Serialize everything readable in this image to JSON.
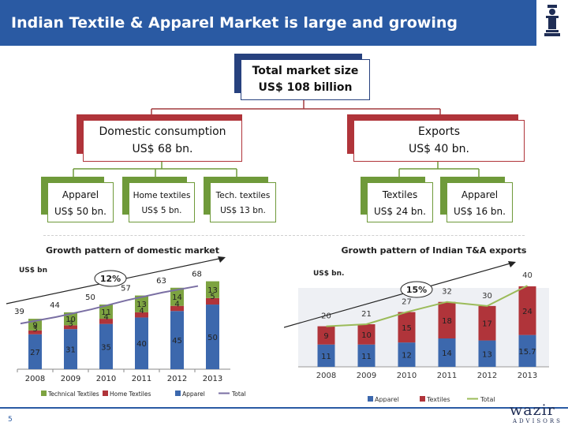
{
  "header": {
    "title": "Indian Textile & Apparel Market is large and growing"
  },
  "logo": {
    "icon": "chess-piece-icon"
  },
  "tree": {
    "root": {
      "line1": "Total market size",
      "line2": "US$ 108 billion"
    },
    "domestic": {
      "line1": "Domestic consumption",
      "line2": "US$ 68 bn."
    },
    "exports": {
      "line1": "Exports",
      "line2": "US$ 40 bn."
    },
    "dom_children": [
      {
        "line1": "Apparel",
        "line2": "US$ 50 bn."
      },
      {
        "line1": "Home textiles",
        "line2": "US$ 5 bn."
      },
      {
        "line1": "Tech. textiles",
        "line2": "US$ 13 bn."
      }
    ],
    "exp_children": [
      {
        "line1": "Textiles",
        "line2": "US$ 24 bn."
      },
      {
        "line1": "Apparel",
        "line2": "US$ 16 bn."
      }
    ]
  },
  "colors": {
    "header": "#2a5aa3",
    "navy": "#27417e",
    "red": "#b0343a",
    "green": "#6f9a3a",
    "blue": "#3c68ad",
    "olive": "#7da341",
    "line": "#7a6fa3",
    "exp_line": "#9bbb59"
  },
  "chart_data": [
    {
      "type": "bar",
      "title": "Growth pattern of domestic market",
      "ylabel": "US$ bn",
      "categories": [
        "2008",
        "2009",
        "2010",
        "2011",
        "2012",
        "2013"
      ],
      "series": [
        {
          "name": "Technical Textiles",
          "values": [
            9,
            10,
            11,
            13,
            14,
            13
          ]
        },
        {
          "name": "Home Textiles",
          "values": [
            3,
            3,
            4,
            4,
            4,
            5
          ]
        },
        {
          "name": "Apparel",
          "values": [
            27,
            31,
            35,
            40,
            45,
            50
          ]
        },
        {
          "name": "Total",
          "values": [
            39,
            44,
            50,
            57,
            63,
            68
          ]
        }
      ],
      "annotation": "12%",
      "ylim": [
        0,
        72
      ]
    },
    {
      "type": "bar",
      "title": "Growth pattern of Indian T&A exports",
      "ylabel": "US$ bn.",
      "categories": [
        "2008",
        "2009",
        "2010",
        "2011",
        "2012",
        "2013"
      ],
      "series": [
        {
          "name": "Apparel",
          "values": [
            "11",
            "11",
            "12",
            "14",
            "13",
            "15.7"
          ]
        },
        {
          "name": "Textiles",
          "values": [
            9,
            10,
            15,
            18,
            17,
            24
          ]
        },
        {
          "name": "Total",
          "values": [
            20,
            21,
            27,
            32,
            30,
            40
          ]
        }
      ],
      "annotation": "15%",
      "ylim": [
        0,
        42
      ]
    }
  ],
  "footer": {
    "page": "5",
    "brand": "wazir",
    "brand_sub": "ADVISORS"
  }
}
